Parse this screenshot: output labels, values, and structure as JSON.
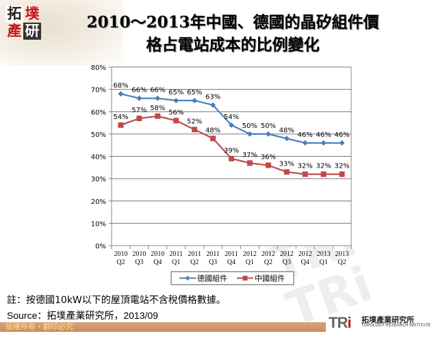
{
  "header": {
    "logo_text": "拓墣產研",
    "title_line1": "2010～2013年中國、德國的晶矽組件價",
    "title_line2": "格占電站成本的比例變化"
  },
  "chart_data": {
    "type": "line",
    "title": "2010～2013年中國、德國的晶矽組件價格占電站成本的比例變化",
    "categories": [
      [
        "2010",
        "Q2"
      ],
      [
        "2010",
        "Q3"
      ],
      [
        "2010",
        "Q4"
      ],
      [
        "2011",
        "Q1"
      ],
      [
        "2011",
        "Q2"
      ],
      [
        "2011",
        "Q3"
      ],
      [
        "2011",
        "Q4"
      ],
      [
        "2012",
        "Q1"
      ],
      [
        "2012",
        "Q2"
      ],
      [
        "2012",
        "Q3"
      ],
      [
        "2012",
        "Q4"
      ],
      [
        "2013",
        "Q1"
      ],
      [
        "2013",
        "Q2"
      ]
    ],
    "ylim": [
      0,
      80
    ],
    "yticks": [
      "0%",
      "10%",
      "20%",
      "30%",
      "40%",
      "50%",
      "60%",
      "70%",
      "80%"
    ],
    "grid": true,
    "legend": "bottom",
    "series": [
      {
        "name": "德國組件",
        "color": "#4a7ebb",
        "marker": "diamond",
        "values": [
          68,
          66,
          66,
          65,
          65,
          63,
          54,
          50,
          50,
          48,
          46,
          46,
          46
        ]
      },
      {
        "name": "中國組件",
        "color": "#be4b48",
        "marker": "square",
        "values": [
          54,
          57,
          58,
          56,
          52,
          48,
          39,
          37,
          36,
          33,
          32,
          32,
          32
        ]
      }
    ]
  },
  "note": "註：按德國10kW以下的屋頂電站不含稅價格數據。",
  "source": "Source：拓墣產業研究所，2013/09",
  "footer": {
    "copyright": "版權所有‧翻印必究",
    "brand_mark": "TRi",
    "brand_cn": "拓墣產業研究所",
    "brand_en": "TOPOLOGY RESEARCH INSTITUTE"
  }
}
